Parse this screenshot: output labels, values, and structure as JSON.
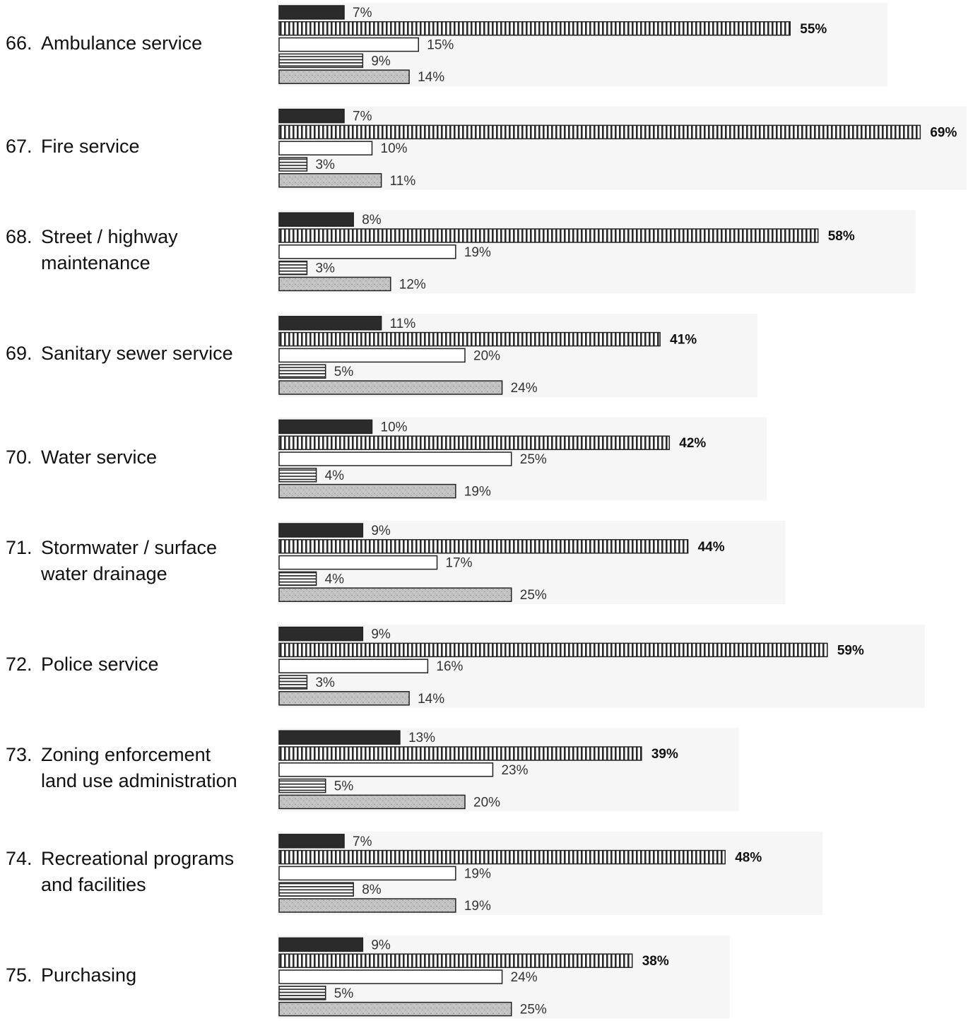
{
  "chart_data": {
    "type": "bar",
    "orientation": "horizontal",
    "value_suffix": "%",
    "categories": [
      {
        "number": "66.",
        "label": [
          "Ambulance service"
        ],
        "values": [
          7,
          55,
          15,
          9,
          14
        ]
      },
      {
        "number": "67.",
        "label": [
          "Fire service"
        ],
        "values": [
          7,
          69,
          10,
          3,
          11
        ]
      },
      {
        "number": "68.",
        "label": [
          "Street / highway",
          "maintenance"
        ],
        "values": [
          8,
          58,
          19,
          3,
          12
        ]
      },
      {
        "number": "69.",
        "label": [
          "Sanitary sewer service"
        ],
        "values": [
          11,
          41,
          20,
          5,
          24
        ]
      },
      {
        "number": "70.",
        "label": [
          "Water service"
        ],
        "values": [
          10,
          42,
          25,
          4,
          19
        ]
      },
      {
        "number": "71.",
        "label": [
          "Stormwater / surface",
          "water drainage"
        ],
        "values": [
          9,
          44,
          17,
          4,
          25
        ]
      },
      {
        "number": "72.",
        "label": [
          "Police service"
        ],
        "values": [
          9,
          59,
          16,
          3,
          14
        ]
      },
      {
        "number": "73.",
        "label": [
          "Zoning enforcement",
          "land use administration"
        ],
        "values": [
          13,
          39,
          23,
          5,
          20
        ]
      },
      {
        "number": "74.",
        "label": [
          "Recreational programs",
          "and facilities"
        ],
        "values": [
          7,
          48,
          19,
          8,
          19
        ]
      },
      {
        "number": "75.",
        "label": [
          "Purchasing"
        ],
        "values": [
          9,
          38,
          24,
          5,
          25
        ]
      }
    ],
    "series": [
      {
        "pattern": "solid-dark",
        "color": "#2b2b2b"
      },
      {
        "pattern": "vertical-stripes",
        "color": "#333333"
      },
      {
        "pattern": "white",
        "color": "#ffffff"
      },
      {
        "pattern": "horizontal-stripes",
        "color": "#444444"
      },
      {
        "pattern": "speckled-gray",
        "color": "#bdbdbd"
      }
    ],
    "xlim": [
      0,
      69
    ],
    "grid": false,
    "legend": "none"
  }
}
